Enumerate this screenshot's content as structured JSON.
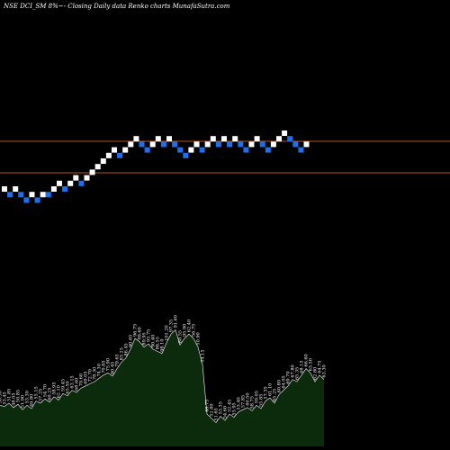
{
  "chart_data": {
    "type": "renko",
    "title": "NSE DCI_SM 8%~- Closing Daily data Renko charts MunafaSutra.com",
    "colors": {
      "background": "#000000",
      "up_brick": "#ffffff",
      "down_brick": "#1e6fe8",
      "reference_line": "#b5561f",
      "volume_fill": "#0c2a0c",
      "volume_outline": "#ffffff"
    },
    "reference_lines": [
      {
        "name": "upper",
        "value": 1
      },
      {
        "name": "lower",
        "value": 2
      }
    ],
    "bricks": [
      {
        "level": 0,
        "dir": "up"
      },
      {
        "level": -1,
        "dir": "down"
      },
      {
        "level": 0,
        "dir": "up"
      },
      {
        "level": -1,
        "dir": "down"
      },
      {
        "level": -2,
        "dir": "down"
      },
      {
        "level": -1,
        "dir": "up"
      },
      {
        "level": -2,
        "dir": "down"
      },
      {
        "level": -1,
        "dir": "up"
      },
      {
        "level": -1,
        "dir": "down"
      },
      {
        "level": 0,
        "dir": "up"
      },
      {
        "level": 1,
        "dir": "up"
      },
      {
        "level": 0,
        "dir": "down"
      },
      {
        "level": 1,
        "dir": "up"
      },
      {
        "level": 2,
        "dir": "up"
      },
      {
        "level": 1,
        "dir": "down"
      },
      {
        "level": 2,
        "dir": "up"
      },
      {
        "level": 3,
        "dir": "up"
      },
      {
        "level": 4,
        "dir": "up"
      },
      {
        "level": 5,
        "dir": "up"
      },
      {
        "level": 6,
        "dir": "up"
      },
      {
        "level": 7,
        "dir": "up"
      },
      {
        "level": 6,
        "dir": "down"
      },
      {
        "level": 7,
        "dir": "up"
      },
      {
        "level": 8,
        "dir": "up"
      },
      {
        "level": 9,
        "dir": "up"
      },
      {
        "level": 8,
        "dir": "down"
      },
      {
        "level": 7,
        "dir": "down"
      },
      {
        "level": 8,
        "dir": "up"
      },
      {
        "level": 9,
        "dir": "up"
      },
      {
        "level": 8,
        "dir": "down"
      },
      {
        "level": 9,
        "dir": "up"
      },
      {
        "level": 8,
        "dir": "down"
      },
      {
        "level": 7,
        "dir": "down"
      },
      {
        "level": 6,
        "dir": "down"
      },
      {
        "level": 7,
        "dir": "up"
      },
      {
        "level": 8,
        "dir": "up"
      },
      {
        "level": 7,
        "dir": "down"
      },
      {
        "level": 8,
        "dir": "up"
      },
      {
        "level": 9,
        "dir": "up"
      },
      {
        "level": 8,
        "dir": "down"
      },
      {
        "level": 9,
        "dir": "up"
      },
      {
        "level": 8,
        "dir": "down"
      },
      {
        "level": 9,
        "dir": "up"
      },
      {
        "level": 8,
        "dir": "down"
      },
      {
        "level": 7,
        "dir": "down"
      },
      {
        "level": 8,
        "dir": "up"
      },
      {
        "level": 9,
        "dir": "up"
      },
      {
        "level": 8,
        "dir": "down"
      },
      {
        "level": 7,
        "dir": "down"
      },
      {
        "level": 8,
        "dir": "up"
      },
      {
        "level": 9,
        "dir": "up"
      },
      {
        "level": 10,
        "dir": "up"
      },
      {
        "level": 9,
        "dir": "down"
      },
      {
        "level": 8,
        "dir": "down"
      },
      {
        "level": 7,
        "dir": "down"
      },
      {
        "level": 8,
        "dir": "up"
      }
    ],
    "volume": {
      "values": [
        38,
        37,
        40,
        36,
        39,
        34,
        38,
        35,
        42,
        40,
        44,
        41,
        46,
        43,
        49,
        47,
        52,
        50,
        54,
        56,
        58,
        60,
        63,
        66,
        68,
        65,
        72,
        78,
        82,
        90,
        100,
        97,
        92,
        95,
        90,
        88,
        86,
        96,
        104,
        108,
        94,
        100,
        104,
        100,
        92,
        76,
        30,
        26,
        22,
        28,
        24,
        30,
        27,
        32,
        34,
        36,
        33,
        38,
        35,
        42,
        45,
        40,
        48,
        52,
        56,
        62,
        60,
        66,
        72,
        68,
        60,
        66,
        62
      ],
      "labels": [
        "56.30",
        "53.45",
        "51.85",
        "48.05",
        "50.85",
        "51.90",
        "53.30",
        "49.80",
        "55.15",
        "57.25",
        "54.70",
        "60.25",
        "58.95",
        "62.10",
        "59.45",
        "65.50",
        "63.15",
        "68.60",
        "70.60",
        "69.05",
        "72.70",
        "78.30",
        "74.30",
        "70.85",
        "75.90",
        "80.45",
        "79.65",
        "83.25",
        "86.45",
        "90.65",
        "96.75",
        "99.60",
        "89.95",
        "93.75",
        "90.40",
        "88.55",
        "98.10",
        "101.20",
        "97.35",
        "91.60",
        "88.55",
        "95.90",
        "62.40",
        "56.75",
        "50.90",
        "54.15",
        "48.75",
        "52.80",
        "51.65",
        "53.35",
        "54.60",
        "52.45",
        "55.95",
        "53.40",
        "57.85",
        "60.50",
        "58.75",
        "59.05",
        "55.85",
        "57.35",
        "61.10",
        "65.25",
        "60.80",
        "64.05",
        "69.70",
        "67.80",
        "65.35",
        "68.15",
        "66.60",
        "63.50",
        "62.80",
        "64.75",
        "63.30"
      ]
    }
  }
}
